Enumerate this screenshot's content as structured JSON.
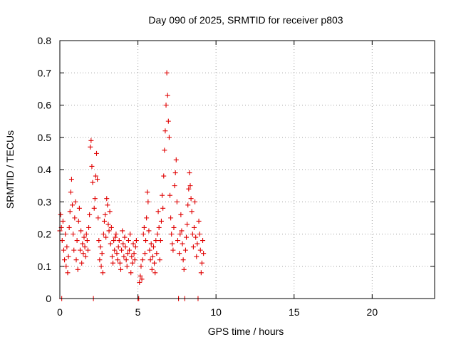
{
  "chart_data": {
    "type": "scatter",
    "title": "Day 090 of 2025, SRMTID for receiver p803",
    "xlabel": "GPS time / hours",
    "ylabel": "SRMTID / TECUs",
    "xlim": [
      0,
      24
    ],
    "ylim": [
      0,
      0.8
    ],
    "x_ticks": [
      0,
      5,
      10,
      15,
      20
    ],
    "x_tick_labels": [
      "0",
      "5",
      "10",
      "15",
      "20"
    ],
    "y_ticks": [
      0,
      0.1,
      0.2,
      0.3,
      0.4,
      0.5,
      0.6,
      0.7,
      0.8
    ],
    "y_tick_labels": [
      "0",
      "0.1",
      "0.2",
      "0.3",
      "0.4",
      "0.5",
      "0.6",
      "0.7",
      "0.8"
    ],
    "grid": true,
    "marker": "+",
    "series": [
      {
        "name": "SRMTID",
        "color": "#e00000",
        "points": [
          [
            0.0,
            0.21
          ],
          [
            0.05,
            0.26
          ],
          [
            0.1,
            0.22
          ],
          [
            0.12,
            0.0
          ],
          [
            0.15,
            0.18
          ],
          [
            0.2,
            0.24
          ],
          [
            0.25,
            0.15
          ],
          [
            0.3,
            0.12
          ],
          [
            0.35,
            0.2
          ],
          [
            0.4,
            0.1
          ],
          [
            0.45,
            0.16
          ],
          [
            0.5,
            0.08
          ],
          [
            0.55,
            0.13
          ],
          [
            0.6,
            0.22
          ],
          [
            0.65,
            0.27
          ],
          [
            0.7,
            0.33
          ],
          [
            0.75,
            0.37
          ],
          [
            0.8,
            0.29
          ],
          [
            0.85,
            0.2
          ],
          [
            0.9,
            0.15
          ],
          [
            0.95,
            0.25
          ],
          [
            1.0,
            0.3
          ],
          [
            1.05,
            0.12
          ],
          [
            1.1,
            0.18
          ],
          [
            1.15,
            0.09
          ],
          [
            1.2,
            0.24
          ],
          [
            1.25,
            0.28
          ],
          [
            1.3,
            0.15
          ],
          [
            1.35,
            0.21
          ],
          [
            1.4,
            0.11
          ],
          [
            1.45,
            0.17
          ],
          [
            1.5,
            0.14
          ],
          [
            1.55,
            0.19
          ],
          [
            1.6,
            0.16
          ],
          [
            1.65,
            0.13
          ],
          [
            1.7,
            0.2
          ],
          [
            1.75,
            0.18
          ],
          [
            1.8,
            0.15
          ],
          [
            1.85,
            0.22
          ],
          [
            1.9,
            0.26
          ],
          [
            1.95,
            0.47
          ],
          [
            2.0,
            0.49
          ],
          [
            2.05,
            0.41
          ],
          [
            2.1,
            0.36
          ],
          [
            2.15,
            0.0
          ],
          [
            2.2,
            0.28
          ],
          [
            2.25,
            0.31
          ],
          [
            2.3,
            0.38
          ],
          [
            2.35,
            0.45
          ],
          [
            2.4,
            0.37
          ],
          [
            2.45,
            0.25
          ],
          [
            2.5,
            0.18
          ],
          [
            2.55,
            0.12
          ],
          [
            2.6,
            0.16
          ],
          [
            2.65,
            0.1
          ],
          [
            2.7,
            0.14
          ],
          [
            2.75,
            0.08
          ],
          [
            2.8,
            0.2
          ],
          [
            2.85,
            0.24
          ],
          [
            2.9,
            0.26
          ],
          [
            2.95,
            0.19
          ],
          [
            3.0,
            0.31
          ],
          [
            3.05,
            0.29
          ],
          [
            3.1,
            0.23
          ],
          [
            3.15,
            0.21
          ],
          [
            3.2,
            0.27
          ],
          [
            3.25,
            0.17
          ],
          [
            3.3,
            0.22
          ],
          [
            3.35,
            0.13
          ],
          [
            3.4,
            0.11
          ],
          [
            3.45,
            0.18
          ],
          [
            3.5,
            0.15
          ],
          [
            3.55,
            0.19
          ],
          [
            3.6,
            0.2
          ],
          [
            3.65,
            0.14
          ],
          [
            3.7,
            0.12
          ],
          [
            3.75,
            0.16
          ],
          [
            3.8,
            0.18
          ],
          [
            3.85,
            0.11
          ],
          [
            3.9,
            0.09
          ],
          [
            3.95,
            0.15
          ],
          [
            4.0,
            0.21
          ],
          [
            4.05,
            0.17
          ],
          [
            4.1,
            0.13
          ],
          [
            4.15,
            0.19
          ],
          [
            4.2,
            0.16
          ],
          [
            4.25,
            0.12
          ],
          [
            4.3,
            0.1
          ],
          [
            4.35,
            0.14
          ],
          [
            4.4,
            0.18
          ],
          [
            4.45,
            0.15
          ],
          [
            4.5,
            0.2
          ],
          [
            4.55,
            0.08
          ],
          [
            4.6,
            0.13
          ],
          [
            4.65,
            0.11
          ],
          [
            4.7,
            0.17
          ],
          [
            4.75,
            0.14
          ],
          [
            4.8,
            0.12
          ],
          [
            4.85,
            0.16
          ],
          [
            4.9,
            0.18
          ],
          [
            5.0,
            0.0
          ],
          [
            5.05,
            0.0
          ],
          [
            5.1,
            0.05
          ],
          [
            5.15,
            0.07
          ],
          [
            5.2,
            0.1
          ],
          [
            5.25,
            0.06
          ],
          [
            5.3,
            0.12
          ],
          [
            5.35,
            0.2
          ],
          [
            5.4,
            0.22
          ],
          [
            5.45,
            0.14
          ],
          [
            5.5,
            0.18
          ],
          [
            5.55,
            0.25
          ],
          [
            5.6,
            0.33
          ],
          [
            5.65,
            0.3
          ],
          [
            5.7,
            0.21
          ],
          [
            5.75,
            0.15
          ],
          [
            5.8,
            0.12
          ],
          [
            5.85,
            0.17
          ],
          [
            5.9,
            0.09
          ],
          [
            5.95,
            0.13
          ],
          [
            6.0,
            0.16
          ],
          [
            6.05,
            0.11
          ],
          [
            6.1,
            0.08
          ],
          [
            6.15,
            0.18
          ],
          [
            6.2,
            0.14
          ],
          [
            6.25,
            0.2
          ],
          [
            6.3,
            0.27
          ],
          [
            6.35,
            0.22
          ],
          [
            6.4,
            0.12
          ],
          [
            6.45,
            0.18
          ],
          [
            6.5,
            0.24
          ],
          [
            6.55,
            0.32
          ],
          [
            6.6,
            0.28
          ],
          [
            6.65,
            0.38
          ],
          [
            6.7,
            0.46
          ],
          [
            6.75,
            0.52
          ],
          [
            6.8,
            0.6
          ],
          [
            6.85,
            0.7
          ],
          [
            6.9,
            0.63
          ],
          [
            6.95,
            0.55
          ],
          [
            7.0,
            0.5
          ],
          [
            7.05,
            0.32
          ],
          [
            7.1,
            0.25
          ],
          [
            7.15,
            0.2
          ],
          [
            7.2,
            0.17
          ],
          [
            7.25,
            0.15
          ],
          [
            7.3,
            0.22
          ],
          [
            7.35,
            0.35
          ],
          [
            7.4,
            0.39
          ],
          [
            7.45,
            0.43
          ],
          [
            7.5,
            0.3
          ],
          [
            7.55,
            0.18
          ],
          [
            7.6,
            0.0
          ],
          [
            7.65,
            0.14
          ],
          [
            7.7,
            0.2
          ],
          [
            7.75,
            0.26
          ],
          [
            7.8,
            0.21
          ],
          [
            7.85,
            0.17
          ],
          [
            7.9,
            0.12
          ],
          [
            7.95,
            0.09
          ],
          [
            8.0,
            0.0
          ],
          [
            8.05,
            0.15
          ],
          [
            8.1,
            0.19
          ],
          [
            8.15,
            0.23
          ],
          [
            8.2,
            0.29
          ],
          [
            8.25,
            0.34
          ],
          [
            8.3,
            0.39
          ],
          [
            8.35,
            0.35
          ],
          [
            8.4,
            0.31
          ],
          [
            8.45,
            0.27
          ],
          [
            8.5,
            0.2
          ],
          [
            8.55,
            0.16
          ],
          [
            8.6,
            0.22
          ],
          [
            8.65,
            0.3
          ],
          [
            8.7,
            0.19
          ],
          [
            8.75,
            0.13
          ],
          [
            8.8,
            0.17
          ],
          [
            8.85,
            0.0
          ],
          [
            8.9,
            0.24
          ],
          [
            8.95,
            0.2
          ],
          [
            9.0,
            0.15
          ],
          [
            9.05,
            0.08
          ],
          [
            9.1,
            0.11
          ],
          [
            9.15,
            0.18
          ],
          [
            9.2,
            0.14
          ]
        ]
      }
    ]
  }
}
